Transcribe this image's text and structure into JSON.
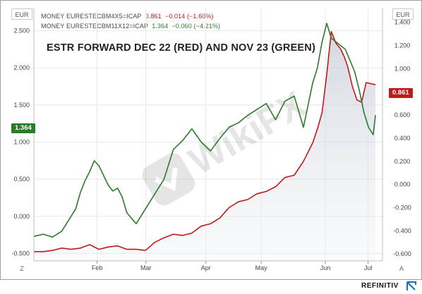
{
  "window": {
    "left_axis_label": "EUR",
    "right_axis_label": "EUR",
    "bottom_left_button": "Z",
    "bottom_right_button": "A",
    "branding": "REFINITIV"
  },
  "legend": [
    {
      "name": "MONEY EURESTECBM4X5=ICAP",
      "value": "0.861",
      "change": "−0.014 (−1.60%)",
      "color": "#c0191a"
    },
    {
      "name": "MONEY EURESTECBM11X12=ICAP",
      "value": "1.364",
      "change": "−0.060 (−4.21%)",
      "color": "#2d7a2d"
    }
  ],
  "tags": {
    "left_value": "1.364",
    "right_value": "0.861"
  },
  "colors": {
    "red": "#c0191a",
    "green": "#2d7a2d",
    "grid": "#e6e8eb",
    "area_top": "#c5ccd6"
  },
  "chart_data": {
    "type": "line",
    "title": "ESTR FORWARD DEC 22 (RED) AND NOV 23 (GREEN)",
    "x_tick_labels": [
      "Feb",
      "Mar",
      "Apr",
      "May",
      "Jun",
      "Jul"
    ],
    "x_ticks_at": [
      13.6,
      24.1,
      37.0,
      48.9,
      62.7,
      71.9
    ],
    "x_range": [
      0,
      75
    ],
    "left_axis": {
      "ticks": [
        "2.500",
        "2.000",
        "1.500",
        "1.000",
        "0.500",
        "0.000",
        "-0.500"
      ],
      "ylim": [
        -0.6,
        2.8
      ]
    },
    "right_axis": {
      "ticks": [
        "1.400",
        "1.200",
        "1.000",
        "0.800",
        "0.600",
        "0.400",
        "0.200",
        "0.000",
        "-0.200",
        "-0.400",
        "-0.600"
      ],
      "ylim": [
        -0.66,
        1.52
      ]
    },
    "grid": true,
    "series": [
      {
        "name": "MONEY EURESTECBM4X5=ICAP",
        "axis": "right",
        "color": "#c0191a",
        "area": true,
        "x": [
          0,
          2,
          4,
          6,
          8,
          10,
          12,
          14,
          16,
          18,
          20,
          22,
          24,
          26,
          28,
          30,
          32,
          34,
          36,
          38,
          40,
          42,
          44,
          46,
          48,
          50,
          52,
          54,
          56,
          58,
          60,
          61,
          62,
          63,
          64,
          65,
          66,
          66.8,
          67.5,
          68.5,
          69.5,
          70.5,
          71.5,
          72.5,
          73.5
        ],
        "y": [
          -0.58,
          -0.58,
          -0.57,
          -0.55,
          -0.56,
          -0.55,
          -0.52,
          -0.56,
          -0.54,
          -0.53,
          -0.56,
          -0.56,
          -0.57,
          -0.5,
          -0.46,
          -0.43,
          -0.44,
          -0.42,
          -0.36,
          -0.34,
          -0.29,
          -0.2,
          -0.15,
          -0.13,
          -0.08,
          -0.06,
          -0.02,
          0.06,
          0.08,
          0.2,
          0.36,
          0.48,
          0.62,
          0.95,
          1.32,
          1.22,
          1.17,
          1.1,
          1.02,
          0.85,
          0.73,
          0.71,
          0.88,
          0.87,
          0.861
        ]
      },
      {
        "name": "MONEY EURESTECBM11X12=ICAP",
        "axis": "left",
        "color": "#2d7a2d",
        "x": [
          0,
          2,
          4,
          6,
          8,
          9,
          10,
          11,
          12,
          13,
          14,
          15,
          16,
          17,
          18,
          19,
          20,
          22,
          24,
          26,
          28,
          30,
          32,
          34,
          36,
          38,
          40,
          42,
          44,
          46,
          48,
          50,
          52,
          54,
          56,
          58,
          60,
          61,
          62,
          63,
          64,
          65,
          66,
          67,
          68,
          69,
          70,
          71,
          72,
          73,
          73.5
        ],
        "y": [
          -0.27,
          -0.24,
          -0.28,
          -0.2,
          0.0,
          0.1,
          0.32,
          0.48,
          0.6,
          0.75,
          0.68,
          0.55,
          0.42,
          0.34,
          0.38,
          0.26,
          0.05,
          -0.1,
          0.1,
          0.3,
          0.5,
          0.9,
          1.02,
          1.18,
          1.0,
          0.88,
          1.05,
          1.2,
          1.26,
          1.36,
          1.44,
          1.52,
          1.3,
          1.55,
          1.62,
          1.2,
          1.8,
          2.0,
          2.35,
          2.6,
          2.4,
          2.35,
          2.3,
          2.25,
          2.1,
          1.95,
          1.7,
          1.4,
          1.2,
          1.1,
          1.364
        ]
      }
    ]
  }
}
